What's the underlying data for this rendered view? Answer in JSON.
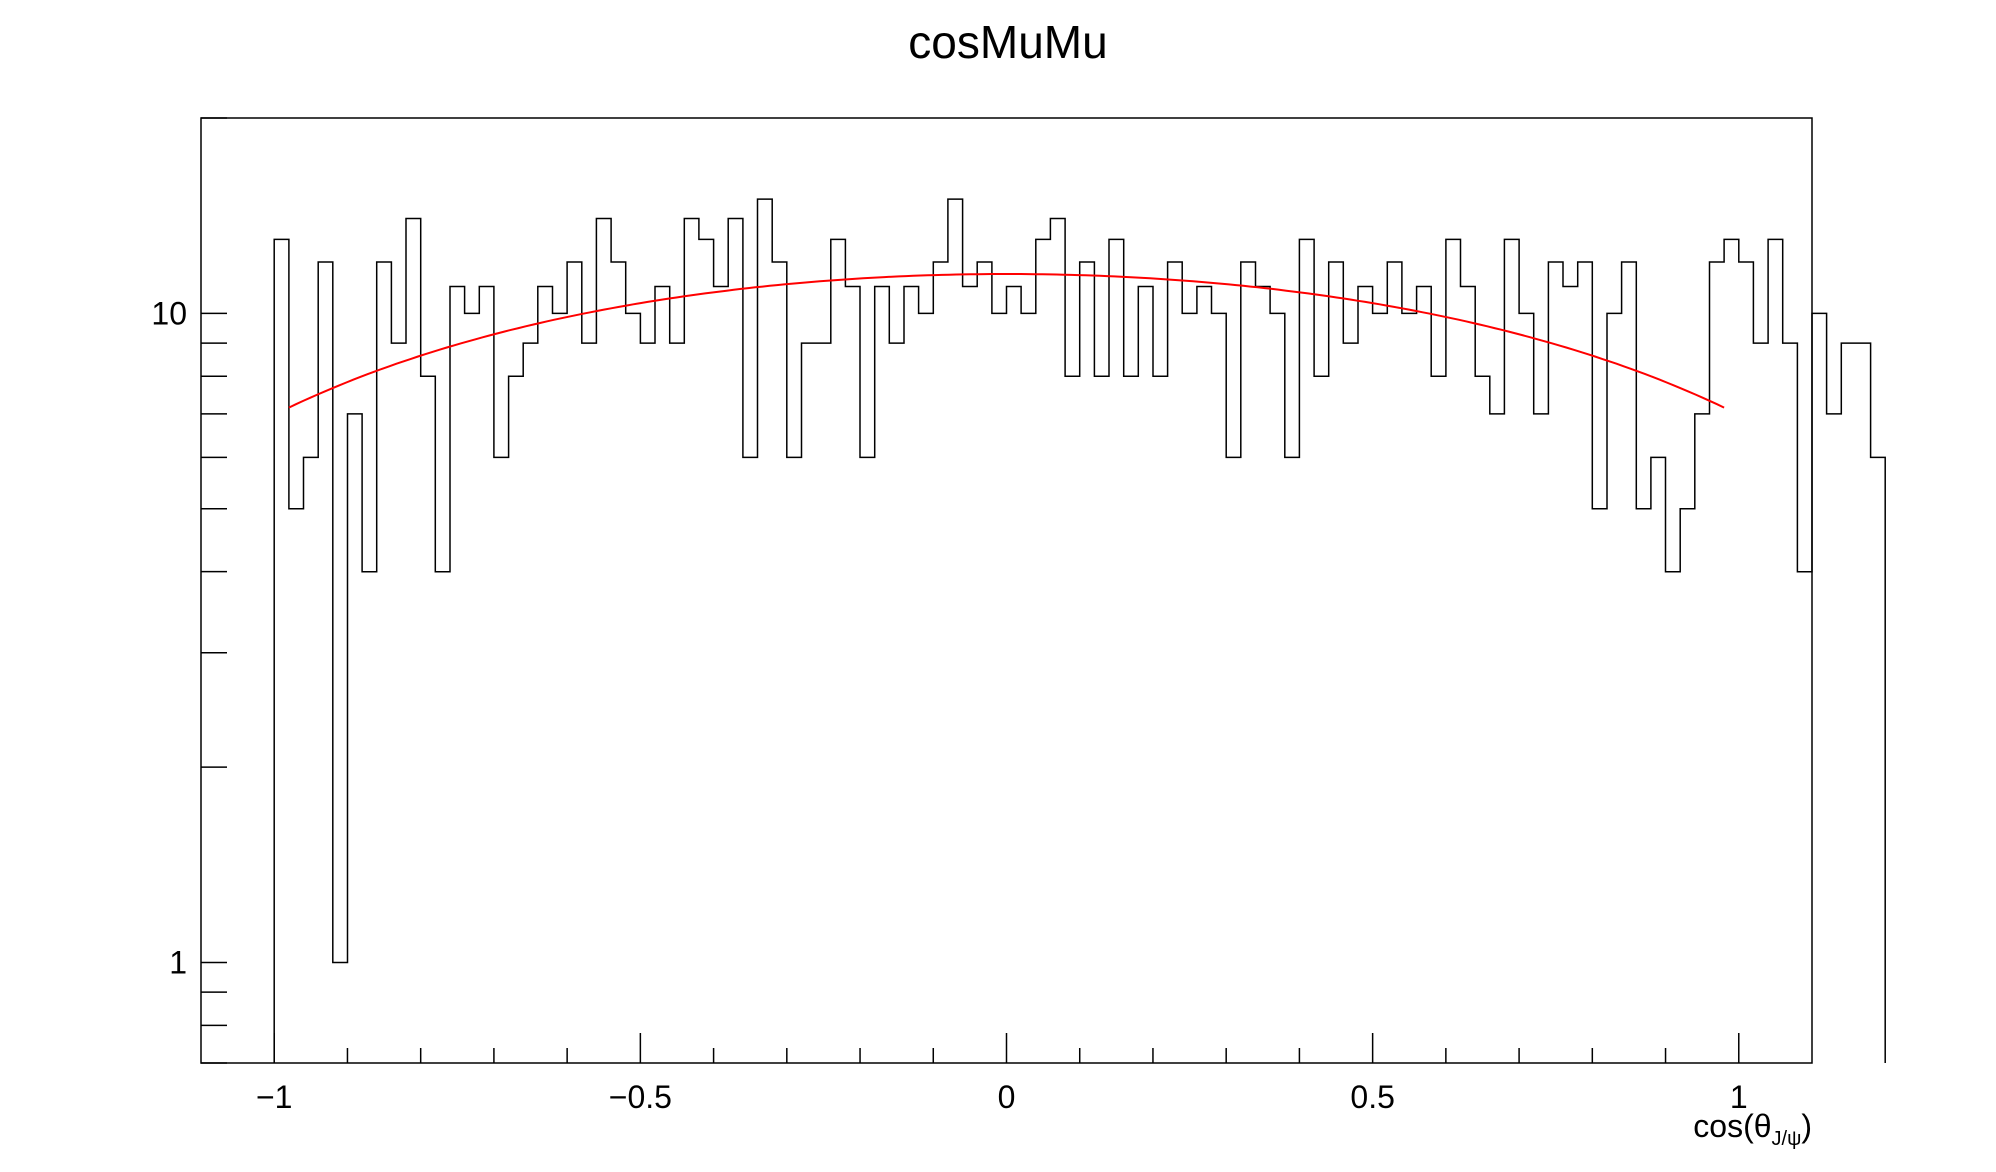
{
  "chart_data": {
    "type": "histogram",
    "title": "cosMuMu",
    "xlabel_main": "cos(θ",
    "xlabel_sub": "J/ψ",
    "xlabel_close": ")",
    "ylabel": "",
    "xlim": [
      -1.1,
      1.1
    ],
    "ylim": [
      0.7,
      20
    ],
    "yscale": "log",
    "grid": false,
    "x_ticks": [
      {
        "value": -1,
        "label": "−1"
      },
      {
        "value": -0.5,
        "label": "−0.5"
      },
      {
        "value": 0,
        "label": "0"
      },
      {
        "value": 0.5,
        "label": "0.5"
      },
      {
        "value": 1,
        "label": "1"
      }
    ],
    "y_ticks": [
      {
        "value": 1,
        "label": "1"
      },
      {
        "value": 10,
        "label": "10"
      }
    ],
    "bin_low": -1,
    "bin_width": 0.02,
    "counts": [
      13,
      5,
      6,
      12,
      1,
      7,
      4,
      12,
      9,
      14,
      8,
      4,
      11,
      10,
      11,
      6,
      8,
      9,
      11,
      10,
      12,
      9,
      14,
      12,
      10,
      9,
      11,
      9,
      14,
      13,
      11,
      14,
      6,
      15,
      12,
      6,
      9,
      9,
      13,
      11,
      6,
      11,
      9,
      11,
      10,
      12,
      15,
      11,
      12,
      10,
      11,
      10,
      13,
      14,
      8,
      12,
      8,
      13,
      8,
      11,
      8,
      12,
      10,
      11,
      10,
      6,
      12,
      11,
      10,
      6,
      13,
      8,
      12,
      9,
      11,
      10,
      12,
      10,
      11,
      8,
      13,
      11,
      8,
      7,
      13,
      10,
      7,
      12,
      11,
      12,
      5,
      10,
      12,
      5,
      6,
      4,
      5,
      7,
      12,
      13,
      12,
      9,
      13,
      9,
      4,
      10,
      7,
      9,
      9,
      6
    ],
    "fit": {
      "name": "",
      "color": "#ff0000",
      "form": "A*(1 + B*x^2)",
      "A": 11.5,
      "B": -0.393,
      "x_range": [
        -0.98,
        0.98
      ]
    },
    "hist_color": "#000000"
  }
}
